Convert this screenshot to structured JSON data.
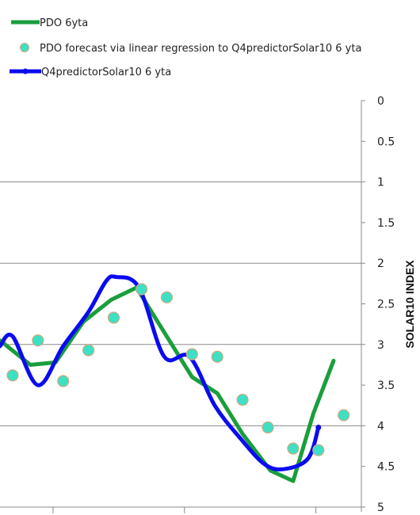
{
  "chart_data": {
    "type": "line",
    "legend": {
      "position": "top-left",
      "entries": [
        {
          "label": "PDO 6yta",
          "marker": "line",
          "color": "#1a9e3c"
        },
        {
          "label": "PDO forecast via linear regression to Q4predictorSolar10 6 yta",
          "marker": "circle",
          "color": "#3de0c4"
        },
        {
          "label": "Q4predictorSolar10 6 yta",
          "marker": "line-dot",
          "color": "#0b0bf0"
        }
      ]
    },
    "y_axis": {
      "title": "SOLAR10 INDEX",
      "position": "right",
      "reversed": true,
      "range": [
        0,
        5
      ],
      "tick_labels": [
        "0",
        "0.5",
        "1",
        "1.5",
        "2",
        "2.5",
        "3",
        "3.5",
        "4",
        "4.5",
        "5"
      ],
      "major_gridlines": [
        1,
        2,
        3,
        4,
        5
      ]
    },
    "x_axis": {
      "tick_labels": [],
      "tick_count": 3
    },
    "series": [
      {
        "name": "PDO 6yta",
        "color": "#1a9e3c",
        "points": [
          [
            0,
            2.95
          ],
          [
            1.2,
            3.25
          ],
          [
            2.2,
            3.22
          ],
          [
            3.3,
            2.72
          ],
          [
            4.4,
            2.45
          ],
          [
            5.4,
            2.3
          ],
          [
            6.5,
            2.85
          ],
          [
            7.6,
            3.4
          ],
          [
            8.6,
            3.6
          ],
          [
            9.6,
            4.1
          ],
          [
            10.7,
            4.55
          ],
          [
            11.6,
            4.68
          ],
          [
            12.4,
            3.85
          ],
          [
            13.2,
            3.2
          ]
        ]
      },
      {
        "name": "PDO forecast via linear regression to Q4predictorSolar10 6 yta",
        "color": "#3de0c4",
        "points": [
          [
            0.5,
            3.38
          ],
          [
            1.5,
            2.95
          ],
          [
            2.5,
            3.45
          ],
          [
            3.5,
            3.07
          ],
          [
            4.5,
            2.67
          ],
          [
            5.6,
            2.32
          ],
          [
            6.6,
            2.42
          ],
          [
            7.6,
            3.12
          ],
          [
            8.6,
            3.15
          ],
          [
            9.6,
            3.68
          ],
          [
            10.6,
            4.02
          ],
          [
            11.6,
            4.28
          ],
          [
            12.6,
            4.3
          ],
          [
            13.6,
            3.87
          ]
        ]
      },
      {
        "name": "Q4predictorSolar10 6 yta",
        "color": "#0b0bf0",
        "points": [
          [
            0,
            3.02
          ],
          [
            0.5,
            2.9
          ],
          [
            1.5,
            3.5
          ],
          [
            2.5,
            3.02
          ],
          [
            3.5,
            2.6
          ],
          [
            4.2,
            2.22
          ],
          [
            4.6,
            2.17
          ],
          [
            5.5,
            2.3
          ],
          [
            6.5,
            3.15
          ],
          [
            7.5,
            3.15
          ],
          [
            8.5,
            3.75
          ],
          [
            9.5,
            4.15
          ],
          [
            10.5,
            4.48
          ],
          [
            11.3,
            4.53
          ],
          [
            12.2,
            4.4
          ],
          [
            12.6,
            4.02
          ]
        ]
      }
    ]
  }
}
